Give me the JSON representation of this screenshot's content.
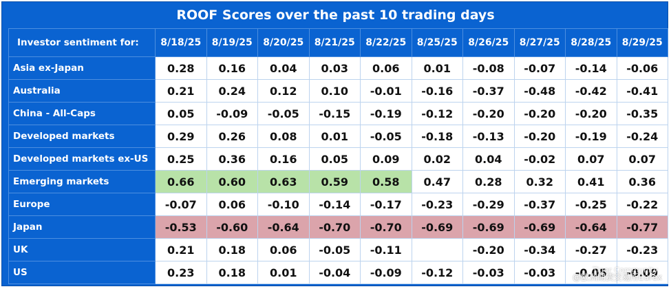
{
  "chart_data": {
    "type": "table",
    "title": "ROOF Scores over the past 10 trading days",
    "row_header_label": "Investor sentiment for:",
    "columns": [
      "8/18/25",
      "8/19/25",
      "8/20/25",
      "8/21/25",
      "8/22/25",
      "8/25/25",
      "8/26/25",
      "8/27/25",
      "8/28/25",
      "8/29/25"
    ],
    "rows": [
      {
        "name": "Asia ex-Japan",
        "values": [
          "0.28",
          "0.16",
          "0.04",
          "0.03",
          "0.06",
          "0.01",
          "-0.08",
          "-0.07",
          "-0.14",
          "-0.06"
        ]
      },
      {
        "name": "Australia",
        "values": [
          "0.21",
          "0.24",
          "0.12",
          "0.10",
          "-0.01",
          "-0.16",
          "-0.37",
          "-0.48",
          "-0.42",
          "-0.41"
        ]
      },
      {
        "name": "China - All-Caps",
        "values": [
          "0.05",
          "-0.09",
          "-0.05",
          "-0.15",
          "-0.19",
          "-0.12",
          "-0.20",
          "-0.20",
          "-0.20",
          "-0.35"
        ]
      },
      {
        "name": "Developed markets",
        "values": [
          "0.29",
          "0.26",
          "0.08",
          "0.01",
          "-0.05",
          "-0.18",
          "-0.13",
          "-0.20",
          "-0.19",
          "-0.24"
        ]
      },
      {
        "name": "Developed markets ex-US",
        "values": [
          "0.25",
          "0.36",
          "0.16",
          "0.05",
          "0.09",
          "0.02",
          "0.04",
          "-0.02",
          "0.07",
          "0.07"
        ]
      },
      {
        "name": "Emerging markets",
        "values": [
          "0.66",
          "0.60",
          "0.63",
          "0.59",
          "0.58",
          "0.47",
          "0.28",
          "0.32",
          "0.41",
          "0.36"
        ]
      },
      {
        "name": "Europe",
        "values": [
          "-0.07",
          "0.06",
          "-0.10",
          "-0.14",
          "-0.17",
          "-0.23",
          "-0.29",
          "-0.37",
          "-0.25",
          "-0.22"
        ]
      },
      {
        "name": "Japan",
        "values": [
          "-0.53",
          "-0.60",
          "-0.64",
          "-0.70",
          "-0.70",
          "-0.69",
          "-0.69",
          "-0.69",
          "-0.64",
          "-0.77"
        ]
      },
      {
        "name": "UK",
        "values": [
          "0.21",
          "0.18",
          "0.06",
          "-0.05",
          "-0.11",
          "",
          "-0.20",
          "-0.34",
          "-0.27",
          "-0.23"
        ]
      },
      {
        "name": "US",
        "values": [
          "0.23",
          "0.18",
          "0.01",
          "-0.04",
          "-0.09",
          "-0.12",
          "-0.03",
          "-0.03",
          "-0.05",
          "-0.09"
        ]
      }
    ],
    "highlight_threshold_high": 0.5,
    "highlight_threshold_low": -0.5,
    "colors": {
      "header": "#0a63d1",
      "high": "#b8e2a8",
      "low": "#dba4ab",
      "cell": "#ffffff"
    }
  },
  "watermark": {
    "line1": "Tiger Community",
    "line2": "@欧洲期货交易所Eurex"
  }
}
